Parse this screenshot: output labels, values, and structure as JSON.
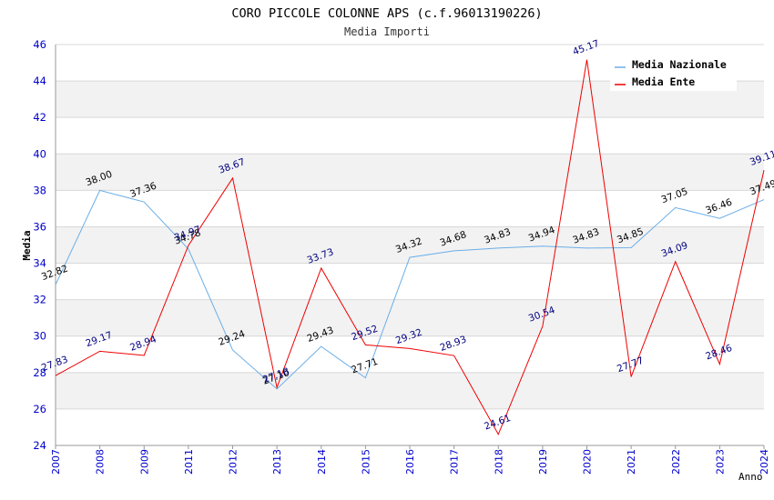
{
  "chart_data": {
    "type": "line",
    "title": "CORO PICCOLE COLONNE APS (c.f.96013190226)",
    "subtitle": "Media Importi",
    "xlabel": "Anno",
    "ylabel": "Media",
    "ylim": [
      24,
      46
    ],
    "yticks": [
      24,
      26,
      28,
      30,
      32,
      34,
      36,
      38,
      40,
      42,
      44,
      46
    ],
    "categories": [
      "2007",
      "2008",
      "2009",
      "2011",
      "2012",
      "2013",
      "2014",
      "2015",
      "2016",
      "2017",
      "2018",
      "2019",
      "2020",
      "2021",
      "2022",
      "2023",
      "2024"
    ],
    "series": [
      {
        "name": "Media Nazionale",
        "color": "#6aaee8",
        "label_color": "#000000",
        "values": [
          32.82,
          38.0,
          37.36,
          34.78,
          29.24,
          27.1,
          29.43,
          27.71,
          34.32,
          34.68,
          34.83,
          34.94,
          34.83,
          34.85,
          37.05,
          36.46,
          37.49
        ],
        "labels": [
          "32.82",
          "38.00",
          "37.36",
          "34.78",
          "29.24",
          "27.10",
          "29.43",
          "27.71",
          "34.32",
          "34.68",
          "34.83",
          "34.94",
          "34.83",
          "34.85",
          "37.05",
          "36.46",
          "37.49"
        ]
      },
      {
        "name": "Media Ente",
        "color": "#ee0000",
        "label_color": "#000080",
        "values": [
          27.83,
          29.17,
          28.94,
          34.97,
          38.67,
          27.18,
          33.73,
          29.52,
          29.32,
          28.93,
          24.61,
          30.54,
          45.17,
          27.77,
          34.09,
          28.46,
          39.11
        ],
        "labels": [
          "27.83",
          "29.17",
          "28.94",
          "34.97",
          "38.67",
          "27.18",
          "33.73",
          "29.52",
          "29.32",
          "28.93",
          "24.61",
          "30.54",
          "45.17",
          "27.77",
          "34.09",
          "28.46",
          "39.11"
        ]
      }
    ],
    "legend": "top-right",
    "grid": true,
    "colors": {
      "axis_text": "#0000cc",
      "band": "#f2f2f2",
      "grid": "#d8d8d8"
    }
  }
}
